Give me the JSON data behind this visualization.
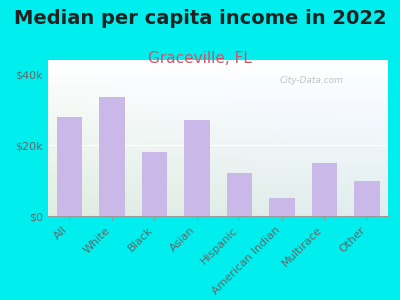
{
  "title": "Median per capita income in 2022",
  "subtitle": "Graceville, FL",
  "categories": [
    "All",
    "White",
    "Black",
    "Asian",
    "Hispanic",
    "American Indian",
    "Multirace",
    "Other"
  ],
  "values": [
    28000,
    33500,
    18000,
    27000,
    12000,
    5000,
    15000,
    10000
  ],
  "bar_color": "#c9b8e8",
  "background_outer": "#00EEEE",
  "background_inner_left": "#ddeebb",
  "background_inner_right": "#f0f4f8",
  "subtitle_color": "#cc5566",
  "title_color": "#222222",
  "ytick_labels": [
    "$0",
    "$20k",
    "$40k"
  ],
  "ytick_values": [
    0,
    20000,
    40000
  ],
  "ylim": [
    0,
    44000
  ],
  "watermark": "City-Data.com",
  "title_fontsize": 14,
  "subtitle_fontsize": 11,
  "tick_fontsize": 8,
  "axis_label_color": "#666666"
}
